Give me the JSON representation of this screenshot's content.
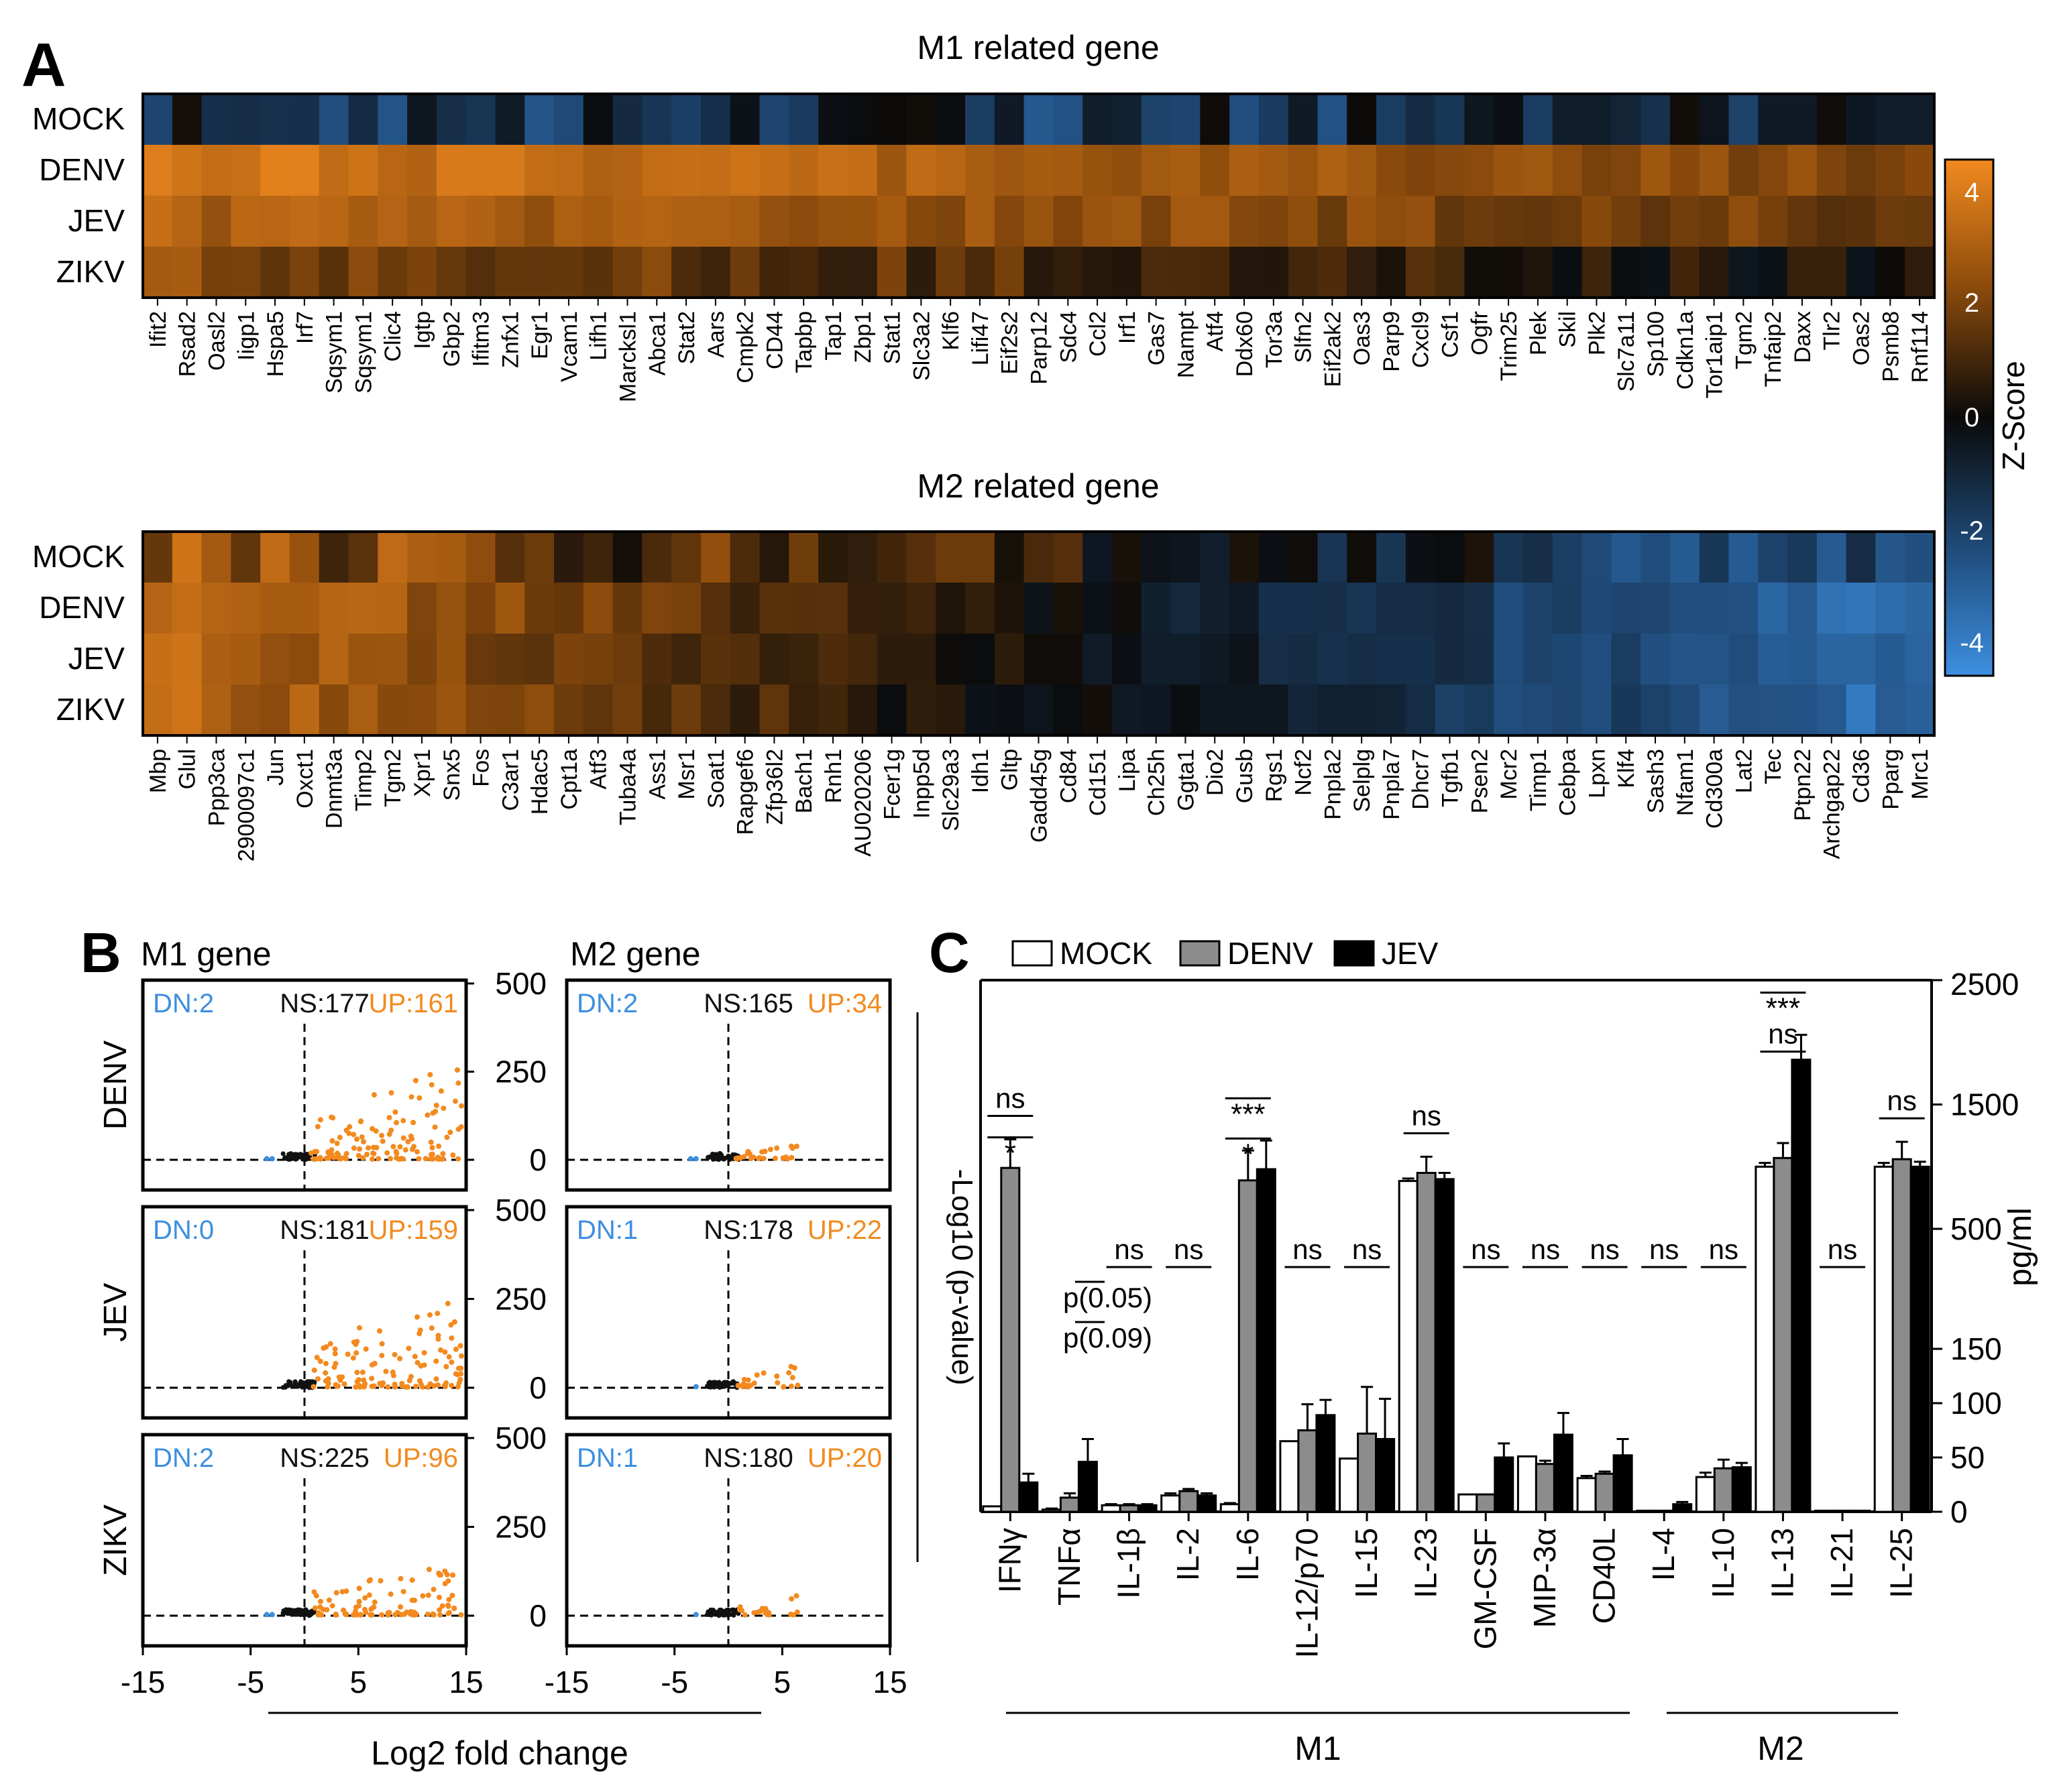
{
  "panel_labels": {
    "a": "A",
    "b": "B",
    "c": "C"
  },
  "colors": {
    "orange": "#f28a1f",
    "blue": "#3d8fe0",
    "dark": "#0a0a0a",
    "mock_fill": "#ffffff",
    "denv_fill": "#8c8c8c",
    "jev_fill": "#000000"
  },
  "heatmap": {
    "legend_title": "Z-Score",
    "legend_ticks": [
      "4",
      "2",
      "0",
      "-2",
      "-4"
    ],
    "conditions": [
      "MOCK",
      "DENV",
      "JEV",
      "ZIKV"
    ],
    "m1": {
      "title": "M1 related gene",
      "genes": [
        "Ifit2",
        "Rsad2",
        "Oasl2",
        "Iigp1",
        "Hspa5",
        "Irf7",
        "Sqsym1",
        "Sqsym1",
        "Clic4",
        "Igtp",
        "Gbp2",
        "Ifitm3",
        "Znfx1",
        "Egr1",
        "Vcam1",
        "Lifh1",
        "Marcksl1",
        "Abca1",
        "Stat2",
        "Aars",
        "Cmpk2",
        "CD44",
        "Tapbp",
        "Tap1",
        "Zbp1",
        "Stat1",
        "Slc3a2",
        "Klf6",
        "Lifi47",
        "Eif2s2",
        "Parp12",
        "Sdc4",
        "Ccl2",
        "Irf1",
        "Gas7",
        "Nampt",
        "Atf4",
        "Ddx60",
        "Tor3a",
        "Slfn2",
        "Eif2ak2",
        "Oas3",
        "Parp9",
        "Cxcl9",
        "Csf1",
        "Ogfr",
        "Trim25",
        "Plek",
        "Skil",
        "Plk2",
        "Slc7a11",
        "Sp100",
        "Cdkn1a",
        "Tor1aip1",
        "Tgm2",
        "Tnfaip2",
        "Daxx",
        "Tlr2",
        "Oas2",
        "Psmb8",
        "Rnf114"
      ]
    },
    "m2": {
      "title": "M2 related gene",
      "genes": [
        "Mbp",
        "Glul",
        "Ppp3ca",
        "2900097c1",
        "Jun",
        "Oxct1",
        "Dnmt3a",
        "Timp2",
        "Tgm2",
        "Xpr1",
        "Snx5",
        "Fos",
        "C3ar1",
        "Hdac5",
        "Cpt1a",
        "Atf3",
        "Tuba4a",
        "Ass1",
        "Msr1",
        "Soat1",
        "Rapgef6",
        "Zfp36l2",
        "Bach1",
        "Rnh1",
        "AU020206",
        "Fcer1g",
        "Inpp5d",
        "Slc29a3",
        "Idh1",
        "Gltp",
        "Gadd45g",
        "Cd84",
        "Cd151",
        "Lipa",
        "Ch25h",
        "Ggta1",
        "Dio2",
        "Gusb",
        "Rgs1",
        "Ncf2",
        "Pnpla2",
        "Selplg",
        "Pnpla7",
        "Dhcr7",
        "Tgfb1",
        "Psen2",
        "Mcr2",
        "Timp1",
        "Cebpa",
        "Lpxn",
        "Klf4",
        "Sash3",
        "Nfam1",
        "Cd300a",
        "Lat2",
        "Tec",
        "Ptpn22",
        "Archgap22",
        "Cd36",
        "Pparg",
        "Mrc1"
      ]
    }
  },
  "volcano": {
    "col_titles": [
      "M1 gene",
      "M2 gene"
    ],
    "row_labels": [
      "DENV",
      "JEV",
      "ZIKV"
    ],
    "x_ticks": [
      "-15",
      "-5",
      "5",
      "15"
    ],
    "y_ticks": [
      "500",
      "250",
      "0"
    ],
    "y_axis_label": "-Log10 (p-value)",
    "x_axis_label": "Log2 fold change",
    "counts": [
      [
        {
          "dn": "DN:2",
          "ns": "NS:177",
          "up": "UP:161"
        },
        {
          "dn": "DN:2",
          "ns": "NS:165",
          "up": "UP:34"
        }
      ],
      [
        {
          "dn": "DN:0",
          "ns": "NS:181",
          "up": "UP:159"
        },
        {
          "dn": "DN:1",
          "ns": "NS:178",
          "up": "UP:22"
        }
      ],
      [
        {
          "dn": "DN:2",
          "ns": "NS:225",
          "up": "UP:96"
        },
        {
          "dn": "DN:1",
          "ns": "NS:180",
          "up": "UP:20"
        }
      ]
    ]
  },
  "chart_data": {
    "type": "bar",
    "title": "",
    "legend": [
      "MOCK",
      "DENV",
      "JEV"
    ],
    "categories": [
      "IFNγ",
      "TNFα",
      "IL-1β",
      "IL-2",
      "IL-6",
      "IL-12/p70",
      "IL-15",
      "IL-23",
      "GM-CSF",
      "MIP-3α",
      "CD40L",
      "IL-4",
      "IL-10",
      "IL-13",
      "IL-21",
      "IL-25"
    ],
    "series": [
      {
        "name": "MOCK",
        "values": [
          5,
          2,
          6,
          15,
          7,
          65,
          49,
          885,
          16,
          51,
          31,
          1,
          32,
          1000,
          1,
          1000
        ]
      },
      {
        "name": "DENV",
        "values": [
          990,
          13,
          6,
          19,
          890,
          75,
          72,
          950,
          16,
          44,
          35,
          1,
          40,
          1070,
          1,
          1060
        ]
      },
      {
        "name": "JEV",
        "values": [
          27,
          46,
          6,
          15,
          980,
          89,
          67,
          900,
          50,
          71,
          52,
          7,
          41,
          1860,
          1,
          1000
        ]
      }
    ],
    "errors": [
      {
        "name": "MOCK",
        "values": [
          0,
          1,
          1,
          2,
          1,
          0,
          0,
          20,
          0,
          0,
          2,
          0,
          4,
          30,
          0,
          30
        ]
      },
      {
        "name": "DENV",
        "values": [
          230,
          4,
          1,
          2,
          240,
          24,
          43,
          130,
          0,
          3,
          2,
          0,
          8,
          120,
          0,
          140
        ]
      },
      {
        "name": "JEV",
        "values": [
          8,
          21,
          1,
          2,
          230,
          14,
          37,
          50,
          13,
          20,
          15,
          2,
          4,
          200,
          0,
          40
        ]
      }
    ],
    "groups": [
      {
        "label": "M1"
      },
      {
        "label": "M2"
      }
    ],
    "ylabel": "pg/ml",
    "y_ticks": [
      "2500",
      "1500",
      "500",
      "150",
      "100",
      "50",
      "0"
    ],
    "ylim_lower": [
      0,
      150
    ],
    "ylim_upper": [
      500,
      2500
    ],
    "significance": [
      {
        "category": "IFNγ",
        "marks": [
          "ns",
          "*"
        ]
      },
      {
        "category": "TNFα",
        "marks": [
          "p(0.05)",
          "p(0.09)"
        ]
      },
      {
        "category": "IL-1β",
        "marks": [
          "ns"
        ]
      },
      {
        "category": "IL-2",
        "marks": [
          "ns"
        ]
      },
      {
        "category": "IL-6",
        "marks": [
          "***",
          "*"
        ]
      },
      {
        "category": "IL-12/p70",
        "marks": [
          "ns"
        ]
      },
      {
        "category": "IL-15",
        "marks": [
          "ns"
        ]
      },
      {
        "category": "IL-23",
        "marks": [
          "ns"
        ]
      },
      {
        "category": "GM-CSF",
        "marks": [
          "ns"
        ]
      },
      {
        "category": "MIP-3α",
        "marks": [
          "ns"
        ]
      },
      {
        "category": "CD40L",
        "marks": [
          "ns"
        ]
      },
      {
        "category": "IL-4",
        "marks": [
          "ns"
        ]
      },
      {
        "category": "IL-10",
        "marks": [
          "ns"
        ]
      },
      {
        "category": "IL-13",
        "marks": [
          "***",
          "ns"
        ]
      },
      {
        "category": "IL-21",
        "marks": [
          "ns"
        ]
      },
      {
        "category": "IL-25",
        "marks": [
          "ns"
        ]
      }
    ]
  }
}
